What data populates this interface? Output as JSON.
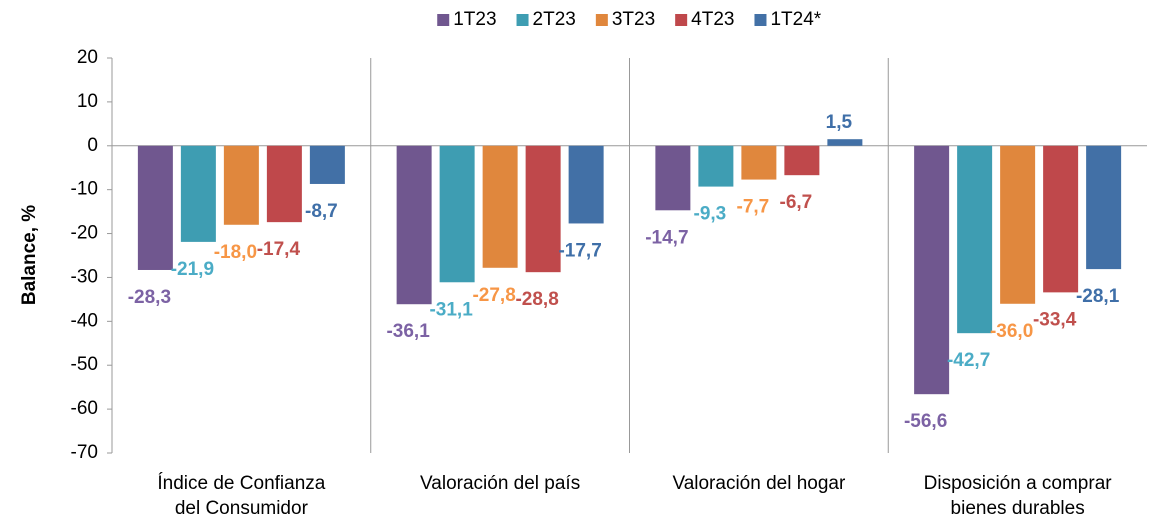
{
  "chart_data": {
    "type": "bar",
    "y_label": "Balance, %",
    "categories": [
      [
        "Índice de Confianza",
        "del Consumidor"
      ],
      [
        "Valoración del país"
      ],
      [
        "Valoración del hogar"
      ],
      [
        "Disposición a comprar",
        "bienes durables"
      ]
    ],
    "series": [
      {
        "name": "1T23",
        "color": "#70578f",
        "label_color": "#7c62a4",
        "values": [
          -28.3,
          -36.1,
          -14.7,
          -56.6
        ],
        "value_labels": [
          "-28,3",
          "-36,1",
          "-14,7",
          "-56,6"
        ]
      },
      {
        "name": "2T23",
        "color": "#3e9db2",
        "label_color": "#4bacc6",
        "values": [
          -21.9,
          -31.1,
          -9.3,
          -42.7
        ],
        "value_labels": [
          "-21,9",
          "-31,1",
          "-9,3",
          "-42,7"
        ]
      },
      {
        "name": "3T23",
        "color": "#e0873d",
        "label_color": "#f79646",
        "values": [
          -18.0,
          -27.8,
          -7.7,
          -36.0
        ],
        "value_labels": [
          "-18,0",
          "-27,8",
          "-7,7",
          "-36,0"
        ]
      },
      {
        "name": "4T23",
        "color": "#bf484b",
        "label_color": "#c0504d",
        "values": [
          -17.4,
          -28.8,
          -6.7,
          -33.4
        ],
        "value_labels": [
          "-17,4",
          "-28,8",
          "-6,7",
          "-33,4"
        ]
      },
      {
        "name": "1T24*",
        "color": "#4270a6",
        "label_color": "#3f6fa8",
        "values": [
          -8.7,
          -17.7,
          1.5,
          -28.1
        ],
        "value_labels": [
          "-8,7",
          "-17,7",
          "1,5",
          "-28,1"
        ]
      }
    ],
    "ylim": [
      -70,
      20
    ],
    "yticks": [
      -70,
      -60,
      -50,
      -40,
      -30,
      -20,
      -10,
      0,
      10,
      20
    ],
    "legend": "top",
    "grid": false
  }
}
